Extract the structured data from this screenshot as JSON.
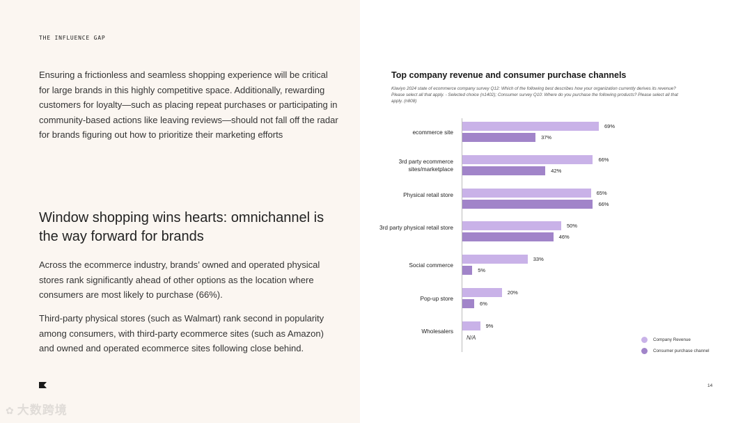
{
  "section_label": "THE INFLUENCE GAP",
  "intro_paragraph": "Ensuring a frictionless and seamless shopping experience will be critical for large brands in this highly competitive space. Additionally, rewarding customers for loyalty—such as placing repeat purchases or participating in community-based actions like leaving reviews—should not fall off the radar for brands figuring out how to prioritize their marketing efforts",
  "heading": "Window shopping wins hearts: omnichannel is the way forward for brands",
  "paragraph_2": "Across the ecommerce industry, brands’ owned and operated physical stores rank significantly ahead of other options as the location where consumers are most likely to purchase (66%).",
  "paragraph_3": "Third-party physical stores (such as Walmart) rank second in popularity among consumers, with third-party ecommerce sites (such as Amazon) and owned and operated ecommerce sites following close behind.",
  "page_number": "14",
  "watermark_text": "大数跨境",
  "colors": {
    "company_revenue": "#c9b2e8",
    "consumer_channel": "#a184c9",
    "left_panel_bg": "#fbf6f1"
  },
  "chart_data": {
    "type": "bar",
    "orientation": "horizontal",
    "title": "Top company revenue and consumer purchase channels",
    "note": "Klaviyo 2024 state of ecommerce company survey Q12: Which of the following best describes how your organization currently derives its revenue? Please select all that apply. - Selected choice (n1402); Consumer survey Q10: Where do you purchase the following products? Please select all that apply. (n808)",
    "categories": [
      "ecommerce site",
      "3rd party ecommerce sites/marketplace",
      "Physical retail store",
      "3rd party physical retail store",
      "Social commerce",
      "Pop-up store",
      "Wholesalers"
    ],
    "series": [
      {
        "name": "Company Revenue",
        "values": [
          69,
          66,
          65,
          50,
          33,
          20,
          9
        ],
        "labels": [
          "69%",
          "66%",
          "65%",
          "50%",
          "33%",
          "20%",
          "9%"
        ]
      },
      {
        "name": "Consumer purchase channel",
        "values": [
          37,
          42,
          66,
          46,
          5,
          6,
          null
        ],
        "labels": [
          "37%",
          "42%",
          "66%",
          "46%",
          "5%",
          "6%",
          "N/A"
        ]
      }
    ],
    "xlim": [
      0,
      70
    ],
    "legend_position": "bottom-right",
    "grid": false
  }
}
